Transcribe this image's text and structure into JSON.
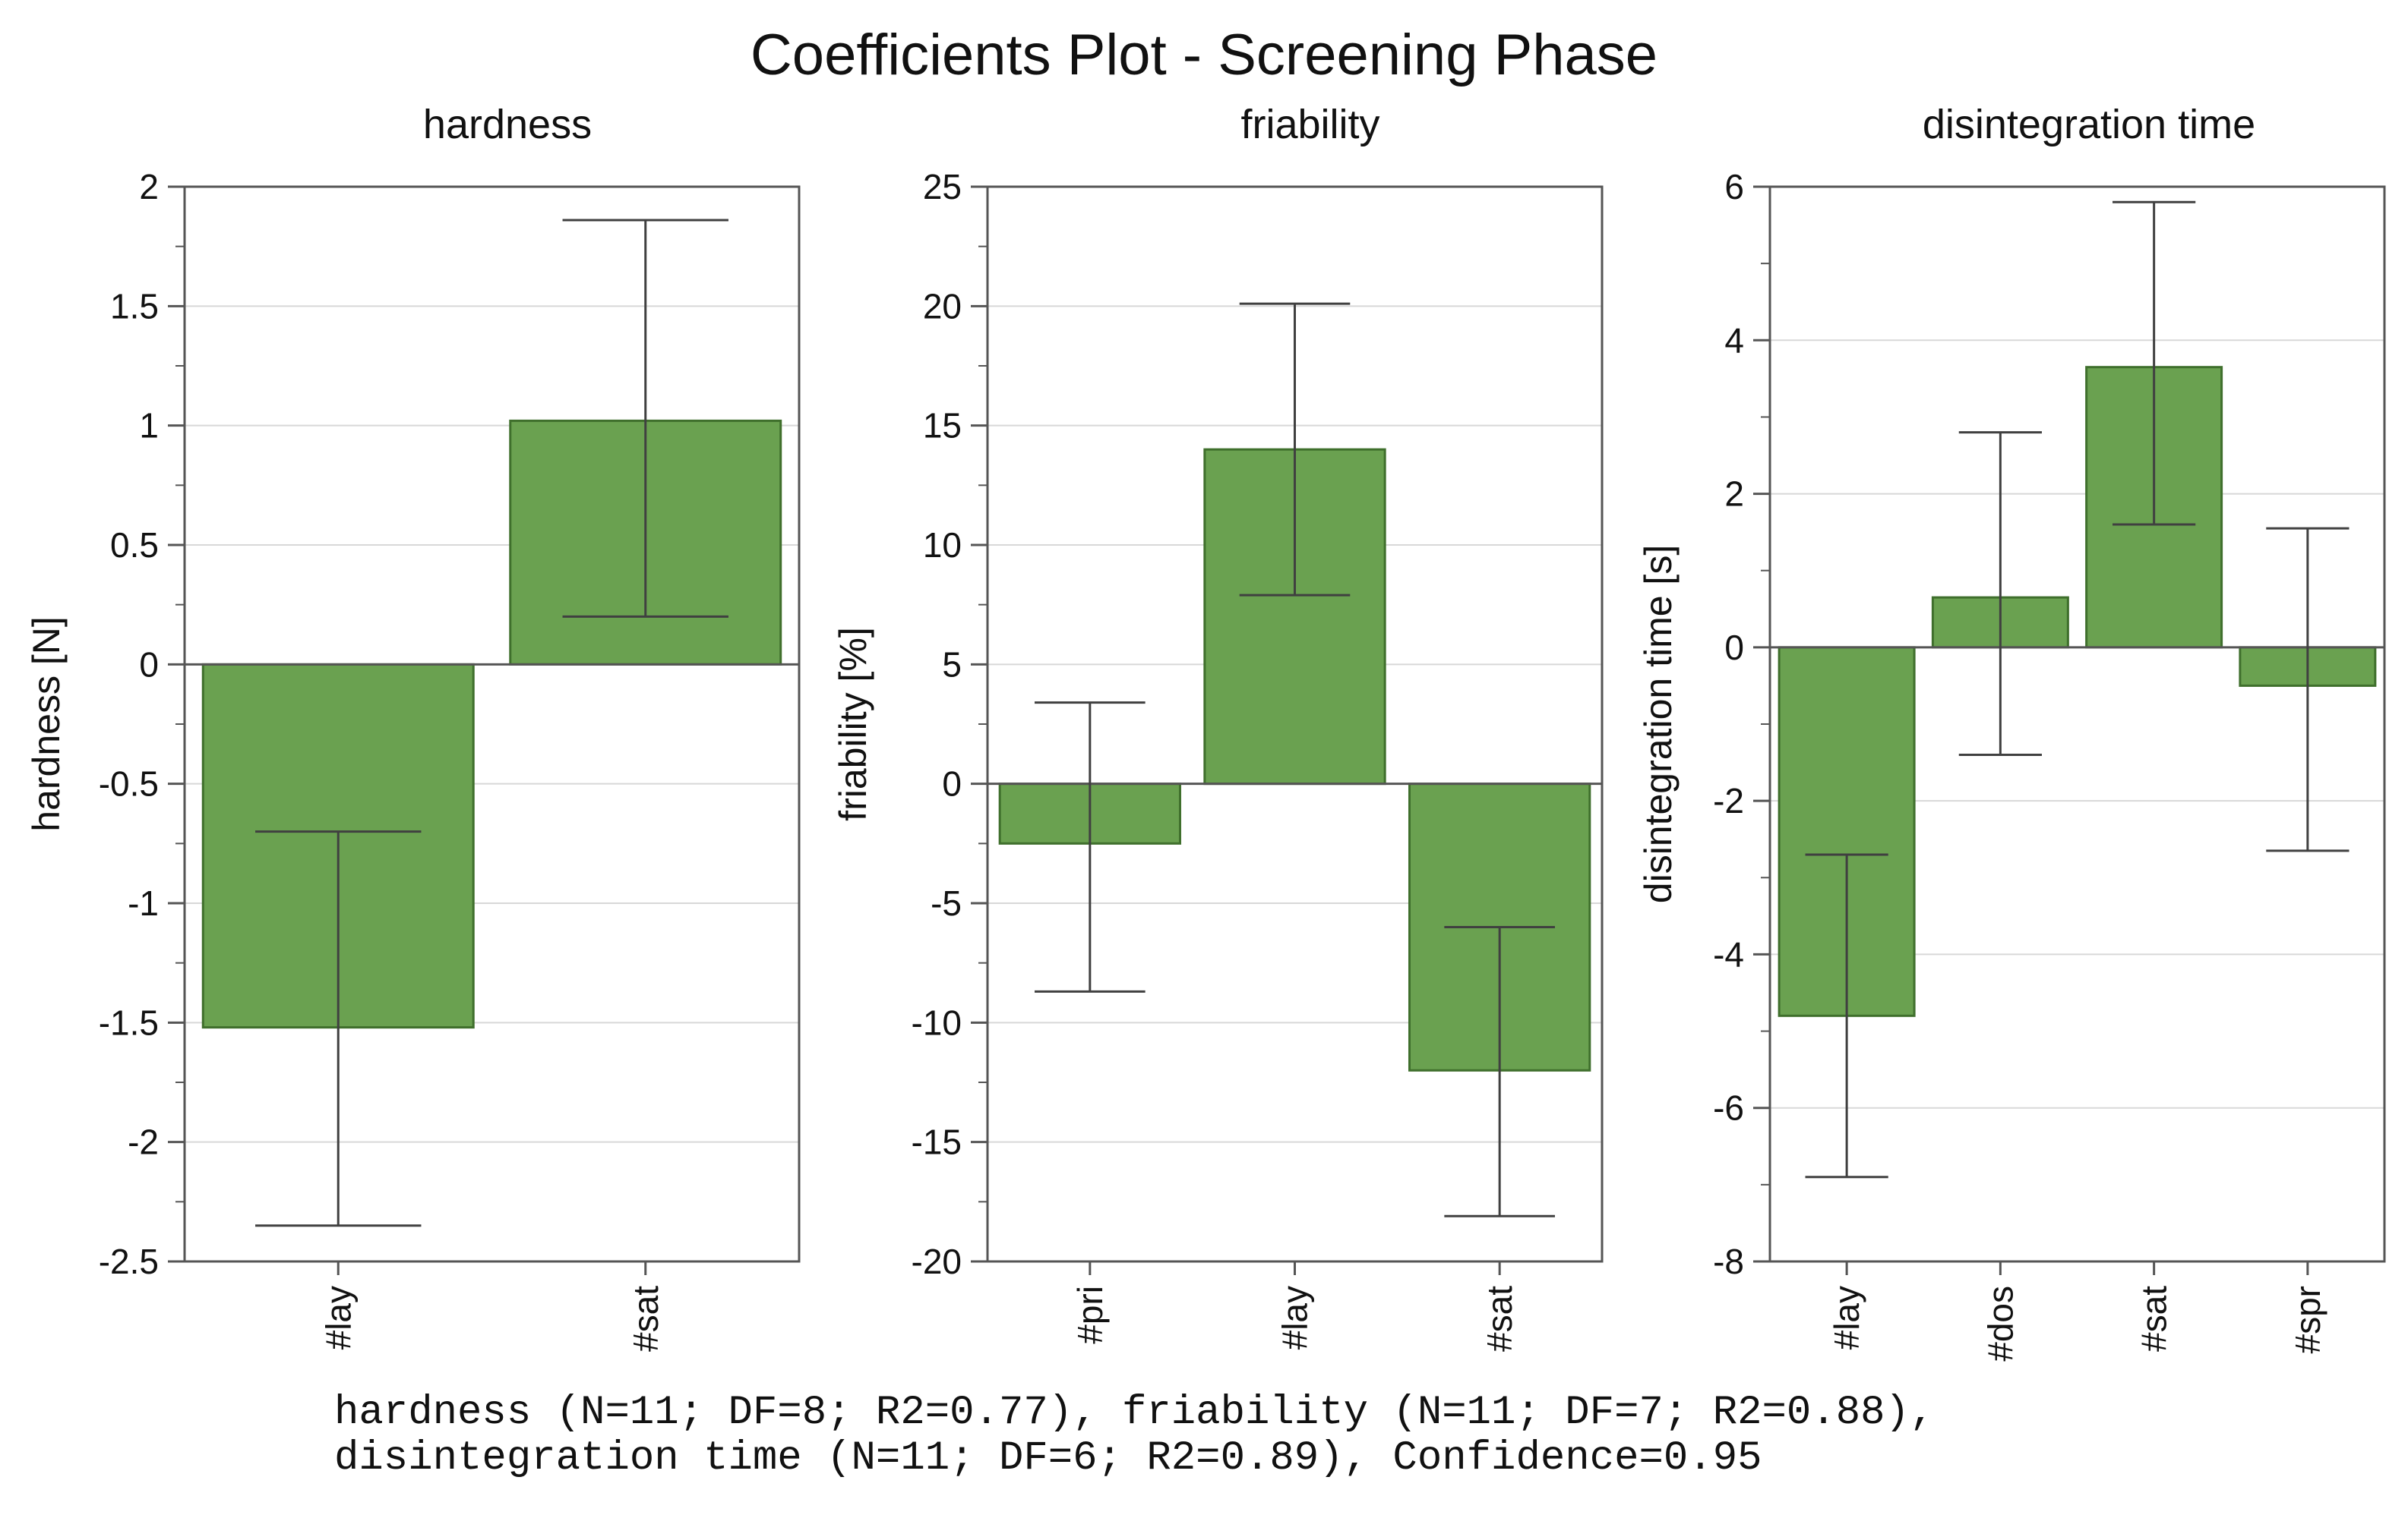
{
  "title": "Coefficients Plot - Screening Phase",
  "footnote": [
    "hardness (N=11; DF=8; R2=0.77), friability (N=11; DF=7; R2=0.88),",
    "disintegration time (N=11; DF=6; R2=0.89), Confidence=0.95"
  ],
  "colors": {
    "bar_fill": "#6aa150",
    "bar_stroke": "#3f6f2c",
    "error_bar": "#404040",
    "grid": "#d8d8d8",
    "axis": "#555555"
  },
  "chart_data": [
    {
      "type": "bar",
      "title": "hardness",
      "ylabel": "hardness [N]",
      "categories": [
        "#lay",
        "#sat"
      ],
      "values": [
        -1.52,
        1.02
      ],
      "error_low": [
        -2.35,
        0.2
      ],
      "error_high": [
        -0.7,
        1.86
      ],
      "ylim": [
        -2.5,
        2
      ],
      "yticks": [
        2,
        1.5,
        1,
        0.5,
        0,
        -0.5,
        -1,
        -1.5,
        -2,
        -2.5
      ],
      "ytick_labels": [
        "2",
        "1.5",
        "1",
        "0.5",
        "0",
        "-0.5",
        "-1",
        "-1.5",
        "-2",
        "-2.5"
      ],
      "grid": true
    },
    {
      "type": "bar",
      "title": "friability",
      "ylabel": "friability [%]",
      "categories": [
        "#pri",
        "#lay",
        "#sat"
      ],
      "values": [
        -2.5,
        14.0,
        -12.0
      ],
      "error_low": [
        -8.7,
        7.9,
        -18.1
      ],
      "error_high": [
        3.4,
        20.1,
        -6.0
      ],
      "ylim": [
        -20,
        25
      ],
      "yticks": [
        25,
        20,
        15,
        10,
        5,
        0,
        -5,
        -10,
        -15,
        -20
      ],
      "ytick_labels": [
        "25",
        "20",
        "15",
        "10",
        "5",
        "0",
        "-5",
        "-10",
        "-15",
        "-20"
      ],
      "grid": true
    },
    {
      "type": "bar",
      "title": "disintegration time",
      "ylabel": "disintegration time [s]",
      "categories": [
        "#lay",
        "#dos",
        "#sat",
        "#spr"
      ],
      "values": [
        -4.8,
        0.65,
        3.65,
        -0.5
      ],
      "error_low": [
        -6.9,
        -1.4,
        1.6,
        -2.65
      ],
      "error_high": [
        -2.7,
        2.8,
        5.8,
        1.55
      ],
      "ylim": [
        -8,
        6
      ],
      "yticks": [
        6,
        4,
        2,
        0,
        -2,
        -4,
        -6,
        -8
      ],
      "ytick_labels": [
        "6",
        "4",
        "2",
        "0",
        "-2",
        "-4",
        "-6",
        "-8"
      ],
      "grid": true
    }
  ]
}
